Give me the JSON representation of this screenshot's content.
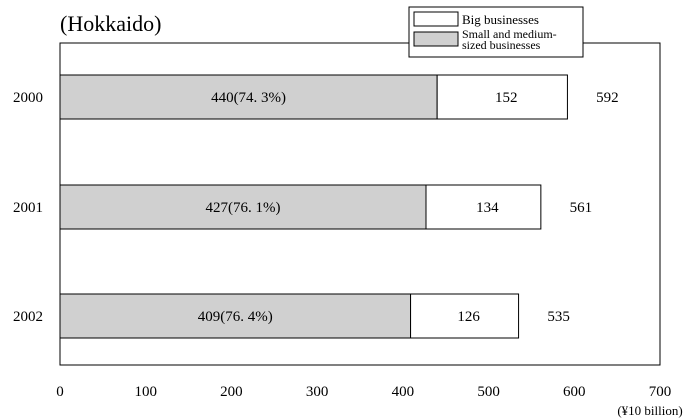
{
  "chart_data": {
    "type": "bar",
    "orientation": "horizontal",
    "stacked": true,
    "title": "(Hokkaido)",
    "unit_label": "(¥10  billion)",
    "categories": [
      "2000",
      "2001",
      "2002"
    ],
    "series": [
      {
        "name": "Small and medium-sized businesses",
        "name_lines": [
          "Small and medium-",
          "sized businesses"
        ],
        "values": [
          440,
          427,
          409
        ],
        "labels": [
          "440(74. 3%)",
          "427(76. 1%)",
          "409(76. 4%)"
        ],
        "color": "#d0d0d0"
      },
      {
        "name": "Big businesses",
        "name_lines": [
          "Big businesses"
        ],
        "values": [
          152,
          134,
          126
        ],
        "labels": [
          "152",
          "134",
          "126"
        ],
        "color": "#ffffff"
      }
    ],
    "totals": [
      592,
      561,
      535
    ],
    "total_labels": [
      "592",
      "561",
      "535"
    ],
    "xlim": [
      0,
      700
    ],
    "xticks": [
      "0",
      "100",
      "200",
      "300",
      "400",
      "500",
      "600",
      "700"
    ],
    "grid": false,
    "legend_position": "top-right"
  }
}
